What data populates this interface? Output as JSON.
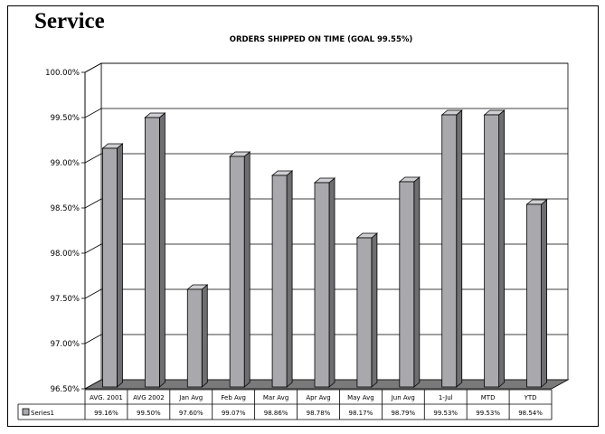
{
  "page": {
    "heading": "Service"
  },
  "chart_data": {
    "type": "bar",
    "title": "ORDERS SHIPPED ON TIME (GOAL 99.55%)",
    "xlabel": "",
    "ylabel": "",
    "ylim": [
      96.5,
      100.0
    ],
    "yticks": [
      "96.50%",
      "97.00%",
      "97.50%",
      "98.00%",
      "98.50%",
      "99.00%",
      "99.50%",
      "100.00%"
    ],
    "categories": [
      "AVG. 2001",
      "AVG 2002",
      "Jan Avg",
      "Feb Avg",
      "Mar Avg",
      "Apr Avg",
      "May Avg",
      "Jun Avg",
      "1-Jul",
      "MTD",
      "YTD"
    ],
    "series": [
      {
        "name": "Series1",
        "values": [
          99.16,
          99.5,
          97.6,
          99.07,
          98.86,
          98.78,
          98.17,
          98.79,
          99.53,
          99.53,
          98.54
        ],
        "labels": [
          "99.16%",
          "99.50%",
          "97.60%",
          "99.07%",
          "98.86%",
          "98.78%",
          "98.17%",
          "98.79%",
          "99.53%",
          "99.53%",
          "98.54%"
        ]
      }
    ],
    "grid": true,
    "legend": "data-table",
    "colors": {
      "bar_front": "#a9a9ad",
      "bar_side": "#6e6e72",
      "bar_top": "#cfcfd3",
      "floor": "#7a7a7a"
    }
  }
}
